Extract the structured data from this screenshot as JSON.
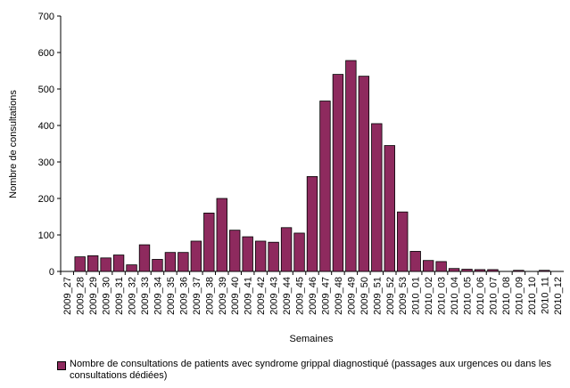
{
  "chart_data": {
    "type": "bar",
    "x_label": "Semaines",
    "y_label": "Nombre de consultations",
    "categories": [
      "2009_27",
      "2009_28",
      "2009_29",
      "2009_30",
      "2009_31",
      "2009_32",
      "2009_33",
      "2009_34",
      "2009_35",
      "2009_36",
      "2009_37",
      "2009_38",
      "2009_39",
      "2009_40",
      "2009_41",
      "2009_42",
      "2009_43",
      "2009_44",
      "2009_45",
      "2009_46",
      "2009_47",
      "2009_48",
      "2009_49",
      "2009_50",
      "2009_51",
      "2009_52",
      "2009_53",
      "2010_01",
      "2010_02",
      "2010_03",
      "2010_04",
      "2010_05",
      "2010_06",
      "2010_07",
      "2010_08",
      "2010_09",
      "2010_10",
      "2010_11",
      "2010_12"
    ],
    "series": [
      {
        "name": "Nombre de consultations de patients avec syndrome grippal diagnostiqué (passages aux urgences ou dans les consultations dédiées)",
        "color": "#8e2a5e",
        "values": [
          0,
          40,
          43,
          37,
          45,
          18,
          73,
          33,
          52,
          52,
          83,
          160,
          200,
          113,
          95,
          83,
          80,
          120,
          105,
          260,
          467,
          540,
          578,
          535,
          405,
          345,
          163,
          55,
          30,
          27,
          8,
          6,
          5,
          5,
          0,
          3,
          0,
          3,
          0
        ]
      }
    ],
    "ylim": [
      0,
      700
    ],
    "yticks": [
      0,
      100,
      200,
      300,
      400,
      500,
      600,
      700
    ],
    "grid": false
  }
}
